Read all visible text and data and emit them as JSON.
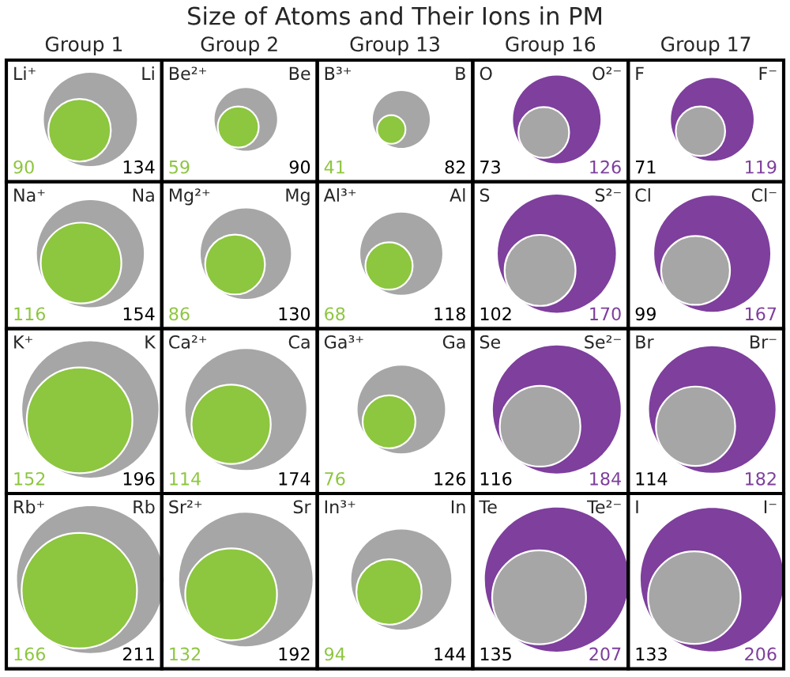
{
  "chart_data": {
    "type": "other",
    "title": "Size of Atoms and Their Ions in PM",
    "categories": [
      "Group 1",
      "Group 2",
      "Group 13",
      "Group 16",
      "Group 17"
    ],
    "data_labels": true,
    "series": [
      {
        "color": "#a6a6a6",
        "values": [
          134,
          90,
          82,
          73,
          71
        ]
      },
      {
        "colors": [
          "#8dc63f",
          "#8dc63f",
          "#8dc63f",
          "#7e3f9d",
          "#7e3f9d"
        ],
        "values": [
          90,
          59,
          41,
          126,
          119
        ]
      },
      {
        "color": "#a6a6a6",
        "values": [
          154,
          130,
          118,
          102,
          99
        ]
      },
      {
        "colors": [
          "#8dc63f",
          "#8dc63f",
          "#8dc63f",
          "#7e3f9d",
          "#7e3f9d"
        ],
        "values": [
          116,
          86,
          68,
          170,
          167
        ]
      },
      {
        "color": "#a6a6a6",
        "values": [
          196,
          174,
          126,
          116,
          114
        ]
      },
      {
        "colors": [
          "#8dc63f",
          "#8dc63f",
          "#8dc63f",
          "#7e3f9d",
          "#7e3f9d"
        ],
        "values": [
          152,
          114,
          76,
          184,
          182
        ]
      },
      {
        "color": "#a6a6a6",
        "values": [
          211,
          192,
          144,
          135,
          133
        ]
      },
      {
        "colors": [
          "#8dc63f",
          "#8dc63f",
          "#8dc63f",
          "#7e3f9d",
          "#7e3f9d"
        ],
        "values": [
          166,
          132,
          94,
          207,
          206
        ]
      }
    ],
    "annotations": [
      "Li",
      "Li⁺",
      "Be",
      "Be²⁺",
      "B",
      "B³⁺",
      "O",
      "O²⁻",
      "F",
      "F⁻",
      "Na",
      "Na⁺",
      "Mg",
      "Mg²⁺",
      "Al",
      "Al³⁺",
      "S",
      "S²⁻",
      "Cl",
      "Cl⁻",
      "K",
      "K⁺",
      "Ca",
      "Ca²⁺",
      "Ga",
      "Ga³⁺",
      "Se",
      "Se²⁻",
      "Br",
      "Br⁻",
      "Rb",
      "Rb⁺",
      "Sr",
      "Sr²⁺",
      "In",
      "In³⁺",
      "Te",
      "Te²⁻",
      "I",
      "I⁻"
    ]
  }
}
